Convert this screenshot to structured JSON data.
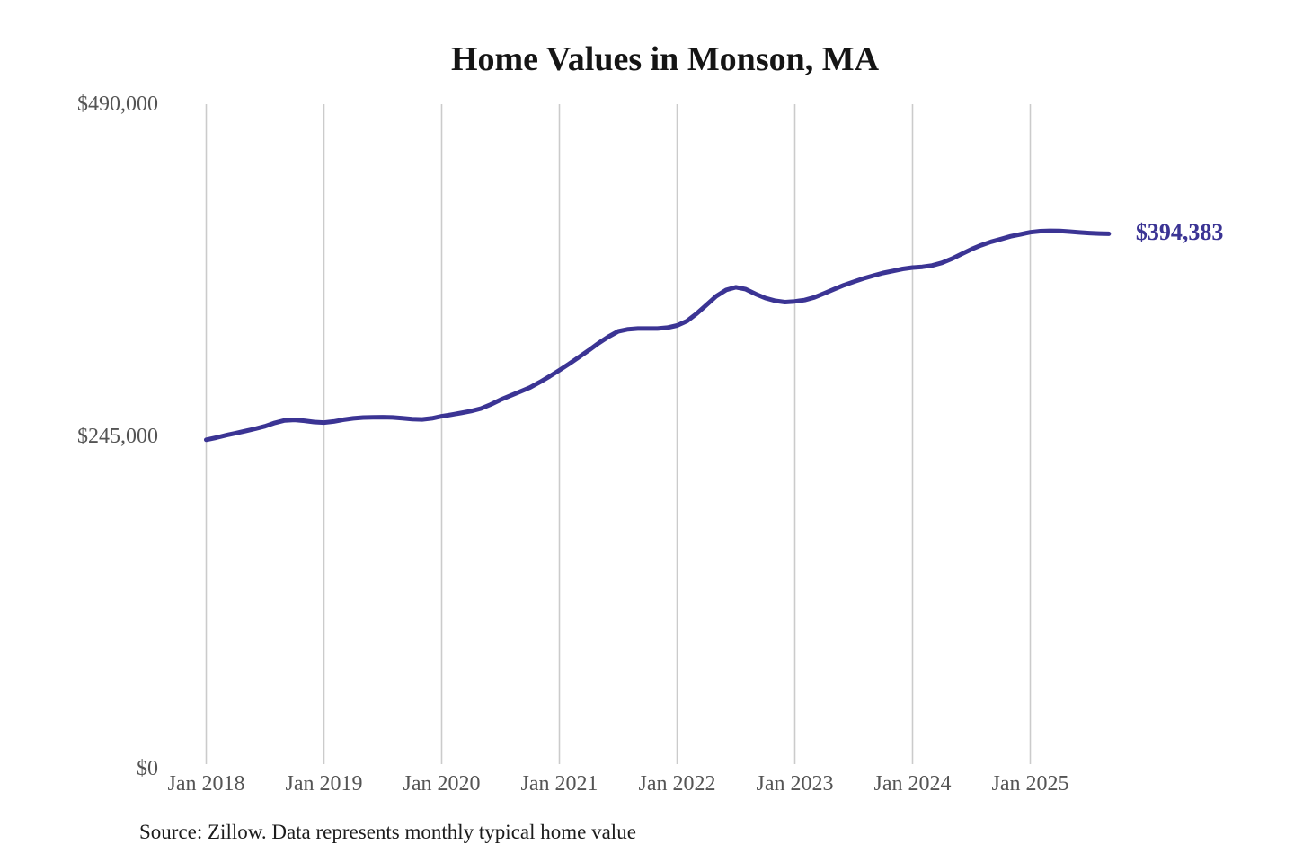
{
  "chart": {
    "title": "Home Values in Monson, MA",
    "end_label": "$394,383",
    "source_note": "Source: Zillow. Data represents monthly typical home value"
  },
  "colors": {
    "line": "#3b3494",
    "gridline": "#cbcbcb",
    "tick_text": "#545454",
    "title_text": "#151515",
    "end_label_text": "#3b3494",
    "background": "#ffffff"
  },
  "chart_data": {
    "type": "line",
    "title": "Home Values in Monson, MA",
    "xlabel": "",
    "ylabel": "",
    "ylim": [
      0,
      490000
    ],
    "y_ticks": [
      0,
      245000,
      490000
    ],
    "y_tick_labels": [
      "$0",
      "$245,000",
      "$490,000"
    ],
    "x_tick_labels": [
      "Jan 2018",
      "Jan 2019",
      "Jan 2020",
      "Jan 2021",
      "Jan 2022",
      "Jan 2023",
      "Jan 2024",
      "Jan 2025"
    ],
    "x_tick_month_indices": [
      0,
      12,
      24,
      36,
      48,
      60,
      72,
      84
    ],
    "grid": "vertical-only",
    "legend": "none",
    "series": [
      {
        "name": "Monthly typical home value",
        "start_month": "2018-01",
        "end_month": "2025-09",
        "values": [
          242500,
          244000,
          245800,
          247400,
          249000,
          250600,
          252500,
          255000,
          256800,
          257200,
          256500,
          255600,
          255200,
          256000,
          257300,
          258300,
          258900,
          259100,
          259200,
          259000,
          258400,
          257800,
          257500,
          258300,
          259800,
          261000,
          262300,
          263700,
          265500,
          268500,
          272000,
          275000,
          278000,
          281000,
          285000,
          289200,
          293800,
          298500,
          303500,
          308500,
          313800,
          318500,
          322500,
          324000,
          324500,
          324500,
          324500,
          325200,
          326800,
          330000,
          335500,
          342000,
          348500,
          353000,
          355000,
          353500,
          350000,
          347000,
          345000,
          344000,
          344500,
          345500,
          347500,
          350500,
          353500,
          356500,
          359000,
          361500,
          363500,
          365500,
          367000,
          368500,
          369500,
          370000,
          371000,
          373000,
          376000,
          379500,
          383000,
          386000,
          388500,
          390500,
          392500,
          394000,
          395500,
          396300,
          396600,
          396500,
          396000,
          395400,
          394900,
          394600,
          394383
        ],
        "latest_value": 394383,
        "latest_value_label": "$394,383"
      }
    ]
  }
}
